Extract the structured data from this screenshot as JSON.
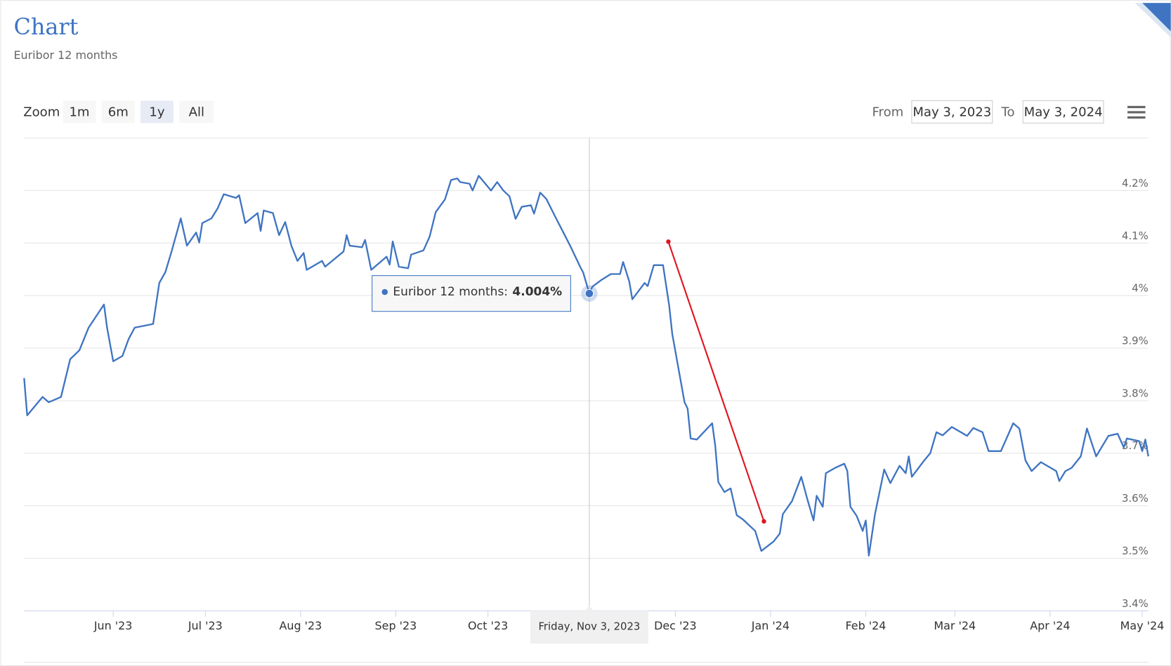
{
  "chart_data": {
    "type": "line",
    "title": "Chart",
    "subtitle": "Euribor 12 months",
    "zoom": {
      "label": "Zoom",
      "buttons": [
        "1m",
        "6m",
        "1y",
        "All"
      ],
      "selected": "1y"
    },
    "range": {
      "from_label": "From",
      "from": "May 3, 2023",
      "to_label": "To",
      "to": "May 3, 2024"
    },
    "xlim": [
      "2023-05-03",
      "2024-05-03"
    ],
    "xticks": [
      {
        "value": "2023-06-01",
        "label": "Jun '23"
      },
      {
        "value": "2023-07-01",
        "label": "Jul '23"
      },
      {
        "value": "2023-08-01",
        "label": "Aug '23"
      },
      {
        "value": "2023-09-01",
        "label": "Sep '23"
      },
      {
        "value": "2023-10-01",
        "label": "Oct '23"
      },
      {
        "value": "2023-12-01",
        "label": "Dec '23"
      },
      {
        "value": "2024-01-01",
        "label": "Jan '24"
      },
      {
        "value": "2024-02-01",
        "label": "Feb '24"
      },
      {
        "value": "2024-03-01",
        "label": "Mar '24"
      },
      {
        "value": "2024-04-01",
        "label": "Apr '24"
      },
      {
        "value": "2024-05-01",
        "label": "May '24"
      }
    ],
    "ylim": [
      3.4,
      4.3
    ],
    "yticks": [
      {
        "value": 3.4,
        "label": "3.4%"
      },
      {
        "value": 3.5,
        "label": "3.5%"
      },
      {
        "value": 3.6,
        "label": "3.6%"
      },
      {
        "value": 3.7,
        "label": "3.7%"
      },
      {
        "value": 3.8,
        "label": "3.8%"
      },
      {
        "value": 3.9,
        "label": "3.9%"
      },
      {
        "value": 4.0,
        "label": "4%"
      },
      {
        "value": 4.1,
        "label": "4.1%"
      },
      {
        "value": 4.2,
        "label": "4.2%"
      }
    ],
    "grid": true,
    "tooltip": {
      "x": "2023-11-03",
      "x_label": "Friday, Nov 3, 2023",
      "series_label": "Euribor 12 months:",
      "value": 4.004,
      "value_label": "4.004%"
    },
    "x": [
      "2023-05-03",
      "2023-05-04",
      "2023-05-09",
      "2023-05-11",
      "2023-05-15",
      "2023-05-18",
      "2023-05-21",
      "2023-05-24",
      "2023-05-29",
      "2023-05-30",
      "2023-06-01",
      "2023-06-04",
      "2023-06-06",
      "2023-06-08",
      "2023-06-14",
      "2023-06-16",
      "2023-06-18",
      "2023-06-20",
      "2023-06-23",
      "2023-06-25",
      "2023-06-28",
      "2023-06-29",
      "2023-06-30",
      "2023-07-03",
      "2023-07-05",
      "2023-07-07",
      "2023-07-11",
      "2023-07-12",
      "2023-07-14",
      "2023-07-18",
      "2023-07-19",
      "2023-07-20",
      "2023-07-23",
      "2023-07-25",
      "2023-07-27",
      "2023-07-29",
      "2023-07-31",
      "2023-08-02",
      "2023-08-03",
      "2023-08-08",
      "2023-08-09",
      "2023-08-15",
      "2023-08-16",
      "2023-08-17",
      "2023-08-21",
      "2023-08-22",
      "2023-08-24",
      "2023-08-29",
      "2023-08-30",
      "2023-08-31",
      "2023-09-02",
      "2023-09-05",
      "2023-09-06",
      "2023-09-10",
      "2023-09-12",
      "2023-09-14",
      "2023-09-17",
      "2023-09-19",
      "2023-09-21",
      "2023-09-22",
      "2023-09-25",
      "2023-09-26",
      "2023-09-28",
      "2023-10-02",
      "2023-10-04",
      "2023-10-06",
      "2023-10-08",
      "2023-10-10",
      "2023-10-12",
      "2023-10-15",
      "2023-10-16",
      "2023-10-18",
      "2023-10-20",
      "2023-10-23",
      "2023-10-26",
      "2023-10-28",
      "2023-10-31",
      "2023-11-01",
      "2023-11-03",
      "2023-11-04",
      "2023-11-07",
      "2023-11-10",
      "2023-11-13",
      "2023-11-14",
      "2023-11-16",
      "2023-11-17",
      "2023-11-21",
      "2023-11-22",
      "2023-11-24",
      "2023-11-27",
      "2023-11-29",
      "2023-11-30",
      "2023-12-04",
      "2023-12-05",
      "2023-12-06",
      "2023-12-08",
      "2023-12-13",
      "2023-12-14",
      "2023-12-15",
      "2023-12-17",
      "2023-12-19",
      "2023-12-21",
      "2023-12-23",
      "2023-12-27",
      "2023-12-29",
      "2024-01-02",
      "2024-01-04",
      "2024-01-05",
      "2024-01-08",
      "2024-01-11",
      "2024-01-13",
      "2024-01-15",
      "2024-01-16",
      "2024-01-18",
      "2024-01-19",
      "2024-01-22",
      "2024-01-25",
      "2024-01-26",
      "2024-01-27",
      "2024-01-29",
      "2024-01-31",
      "2024-02-01",
      "2024-02-02",
      "2024-02-04",
      "2024-02-07",
      "2024-02-09",
      "2024-02-12",
      "2024-02-14",
      "2024-02-15",
      "2024-02-16",
      "2024-02-20",
      "2024-02-22",
      "2024-02-24",
      "2024-02-26",
      "2024-02-29",
      "2024-03-05",
      "2024-03-07",
      "2024-03-10",
      "2024-03-12",
      "2024-03-16",
      "2024-03-20",
      "2024-03-22",
      "2024-03-24",
      "2024-03-26",
      "2024-03-29",
      "2024-04-03",
      "2024-04-04",
      "2024-04-06",
      "2024-04-08",
      "2024-04-11",
      "2024-04-13",
      "2024-04-16",
      "2024-04-20",
      "2024-04-23",
      "2024-04-25",
      "2024-04-26",
      "2024-04-30",
      "2024-05-01",
      "2024-05-02",
      "2024-05-03"
    ],
    "series": [
      {
        "name": "Euribor 12 months",
        "color": "#3f74c2",
        "values": [
          3.843,
          3.772,
          3.807,
          3.797,
          3.807,
          3.879,
          3.896,
          3.939,
          3.983,
          3.939,
          3.875,
          3.885,
          3.917,
          3.939,
          3.946,
          4.024,
          4.045,
          4.084,
          4.147,
          4.095,
          4.12,
          4.101,
          4.138,
          4.147,
          4.166,
          4.193,
          4.186,
          4.191,
          4.138,
          4.157,
          4.123,
          4.162,
          4.157,
          4.115,
          4.14,
          4.095,
          4.066,
          4.081,
          4.049,
          4.066,
          4.055,
          4.084,
          4.115,
          4.095,
          4.092,
          4.106,
          4.049,
          4.074,
          4.059,
          4.103,
          4.055,
          4.052,
          4.078,
          4.086,
          4.112,
          4.159,
          4.183,
          4.22,
          4.223,
          4.216,
          4.213,
          4.2,
          4.228,
          4.2,
          4.216,
          4.2,
          4.189,
          4.146,
          4.169,
          4.172,
          4.156,
          4.196,
          4.184,
          4.149,
          4.115,
          4.092,
          4.055,
          4.044,
          4.004,
          4.017,
          4.03,
          4.041,
          4.041,
          4.064,
          4.027,
          3.993,
          4.024,
          4.018,
          4.058,
          4.058,
          3.981,
          3.927,
          3.797,
          3.785,
          3.728,
          3.726,
          3.757,
          3.714,
          3.645,
          3.626,
          3.633,
          3.582,
          3.574,
          3.552,
          3.514,
          3.532,
          3.547,
          3.584,
          3.609,
          3.655,
          3.612,
          3.572,
          3.619,
          3.598,
          3.662,
          3.672,
          3.68,
          3.666,
          3.598,
          3.581,
          3.552,
          3.572,
          3.505,
          3.584,
          3.669,
          3.643,
          3.676,
          3.662,
          3.694,
          3.655,
          3.686,
          3.7,
          3.74,
          3.734,
          3.75,
          3.733,
          3.748,
          3.74,
          3.704,
          3.704,
          3.757,
          3.747,
          3.686,
          3.666,
          3.683,
          3.666,
          3.647,
          3.666,
          3.672,
          3.694,
          3.747,
          3.694,
          3.733,
          3.737,
          3.711,
          3.728,
          3.723,
          3.704,
          3.726,
          3.694
        ]
      }
    ]
  }
}
